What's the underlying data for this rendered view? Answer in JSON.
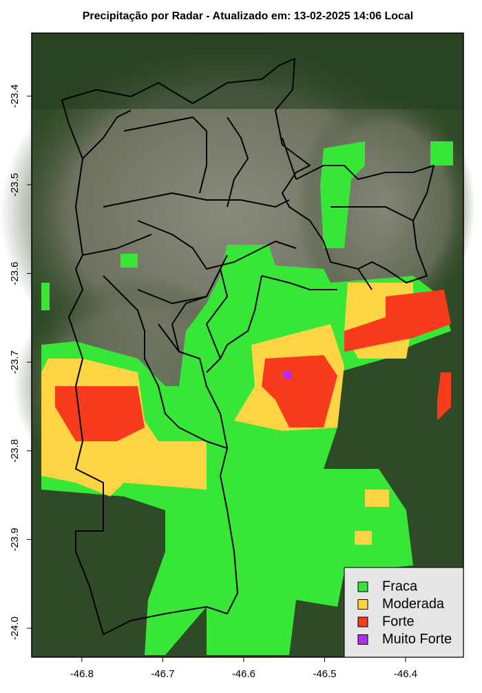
{
  "chart_data": {
    "type": "map",
    "title": "Precipitação por Radar - Atualizado em: 13-02-2025 14:06 Local",
    "xlim": [
      -46.862,
      -46.3285
    ],
    "ylim": [
      -24.0326,
      -23.329
    ],
    "xticks": [
      -46.8,
      -46.7,
      -46.6,
      -46.5,
      -46.4
    ],
    "yticks": [
      -23.4,
      -23.5,
      -23.6,
      -23.7,
      -23.8,
      -23.9,
      {
        "value": -24,
        "label": "-24.0"
      }
    ],
    "legend": {
      "position": "bottom-right",
      "items": [
        {
          "name": "Fraca",
          "color": "#38e638"
        },
        {
          "name": "Moderada",
          "color": "#fcd444"
        },
        {
          "name": "Forte",
          "color": "#f63c1c"
        },
        {
          "name": "Muito Forte",
          "color": "#b42cf4"
        }
      ]
    }
  }
}
